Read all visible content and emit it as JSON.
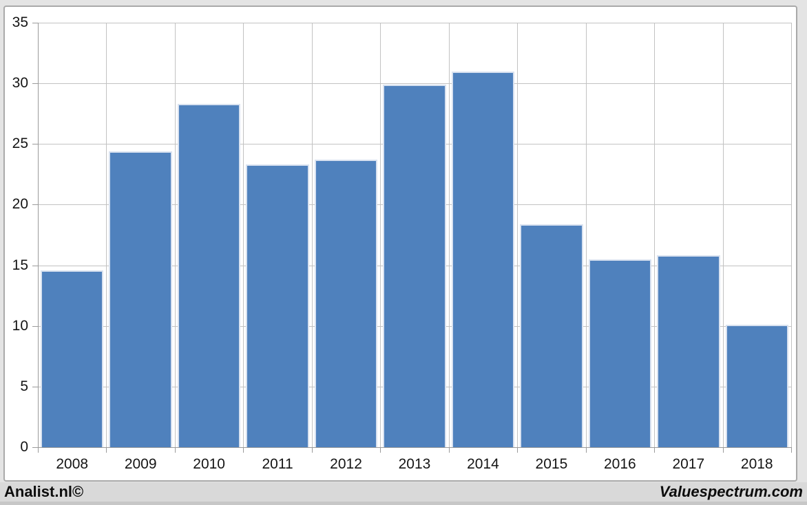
{
  "chart_data": {
    "type": "bar",
    "title": "",
    "xlabel": "",
    "ylabel": "",
    "categories": [
      "2008",
      "2009",
      "2010",
      "2011",
      "2012",
      "2013",
      "2014",
      "2015",
      "2016",
      "2017",
      "2018"
    ],
    "values": [
      14.6,
      24.4,
      28.3,
      23.3,
      23.7,
      29.9,
      31.0,
      18.4,
      15.5,
      15.8,
      10.1
    ],
    "ylim": [
      0,
      35
    ],
    "ytick_step": 5,
    "grid": true,
    "vertical_gridlines": true,
    "legend_position": "none",
    "bar_color": "#4f81bd",
    "bar_border_color": "#d9e2f0",
    "gridline_color": "#c2c2c2",
    "axis_color": "#9a9a9a",
    "label_color": "#151515"
  },
  "footer": {
    "left_watermark": "Analist.nl©",
    "right_watermark": "Valuespectrum.com"
  }
}
